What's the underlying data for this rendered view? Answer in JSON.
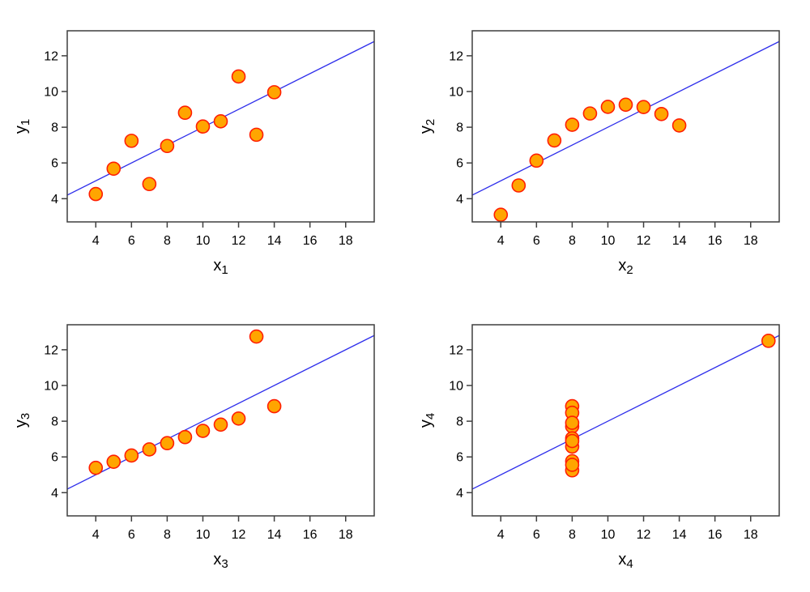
{
  "figure": {
    "background": "#ffffff",
    "colors": {
      "point_fill": "#FFA500",
      "point_stroke": "#FF1E00",
      "fit_line": "#2D2DEB",
      "frame": "#3F3F3F",
      "tick": "#3F3F3F",
      "text": "#000000"
    }
  },
  "chart_data": [
    {
      "type": "scatter",
      "title": "",
      "xlabel": "x",
      "xlabel_sub": "1",
      "ylabel": "y",
      "ylabel_sub": "1",
      "x": [
        10,
        8,
        13,
        9,
        11,
        14,
        6,
        4,
        12,
        7,
        5
      ],
      "y": [
        8.04,
        6.95,
        7.58,
        8.81,
        8.33,
        9.96,
        7.24,
        4.26,
        10.84,
        4.82,
        5.68
      ],
      "fit_line": {
        "slope": 0.5,
        "intercept": 3.0
      },
      "xlim": [
        2.4,
        19.6
      ],
      "ylim": [
        2.7,
        13.4
      ],
      "xticks": [
        4,
        6,
        8,
        10,
        12,
        14,
        16,
        18
      ],
      "yticks": [
        4,
        6,
        8,
        10,
        12
      ],
      "grid": false,
      "legend": null
    },
    {
      "type": "scatter",
      "title": "",
      "xlabel": "x",
      "xlabel_sub": "2",
      "ylabel": "y",
      "ylabel_sub": "2",
      "x": [
        10,
        8,
        13,
        9,
        11,
        14,
        6,
        4,
        12,
        7,
        5
      ],
      "y": [
        9.14,
        8.14,
        8.74,
        8.77,
        9.26,
        8.1,
        6.13,
        3.1,
        9.13,
        7.26,
        4.74
      ],
      "fit_line": {
        "slope": 0.5,
        "intercept": 3.0
      },
      "xlim": [
        2.4,
        19.6
      ],
      "ylim": [
        2.7,
        13.4
      ],
      "xticks": [
        4,
        6,
        8,
        10,
        12,
        14,
        16,
        18
      ],
      "yticks": [
        4,
        6,
        8,
        10,
        12
      ],
      "grid": false,
      "legend": null
    },
    {
      "type": "scatter",
      "title": "",
      "xlabel": "x",
      "xlabel_sub": "3",
      "ylabel": "y",
      "ylabel_sub": "3",
      "x": [
        10,
        8,
        13,
        9,
        11,
        14,
        6,
        4,
        12,
        7,
        5
      ],
      "y": [
        7.46,
        6.77,
        12.74,
        7.11,
        7.81,
        8.84,
        6.08,
        5.39,
        8.15,
        6.42,
        5.73
      ],
      "fit_line": {
        "slope": 0.5,
        "intercept": 3.0
      },
      "xlim": [
        2.4,
        19.6
      ],
      "ylim": [
        2.7,
        13.4
      ],
      "xticks": [
        4,
        6,
        8,
        10,
        12,
        14,
        16,
        18
      ],
      "yticks": [
        4,
        6,
        8,
        10,
        12
      ],
      "grid": false,
      "legend": null
    },
    {
      "type": "scatter",
      "title": "",
      "xlabel": "x",
      "xlabel_sub": "4",
      "ylabel": "y",
      "ylabel_sub": "4",
      "x": [
        8,
        8,
        8,
        8,
        8,
        8,
        8,
        19,
        8,
        8,
        8
      ],
      "y": [
        6.58,
        5.76,
        7.71,
        8.84,
        8.47,
        7.04,
        5.25,
        12.5,
        5.56,
        7.91,
        6.89
      ],
      "fit_line": {
        "slope": 0.5,
        "intercept": 3.0
      },
      "xlim": [
        2.4,
        19.6
      ],
      "ylim": [
        2.7,
        13.4
      ],
      "xticks": [
        4,
        6,
        8,
        10,
        12,
        14,
        16,
        18
      ],
      "yticks": [
        4,
        6,
        8,
        10,
        12
      ],
      "grid": false,
      "legend": null
    }
  ]
}
